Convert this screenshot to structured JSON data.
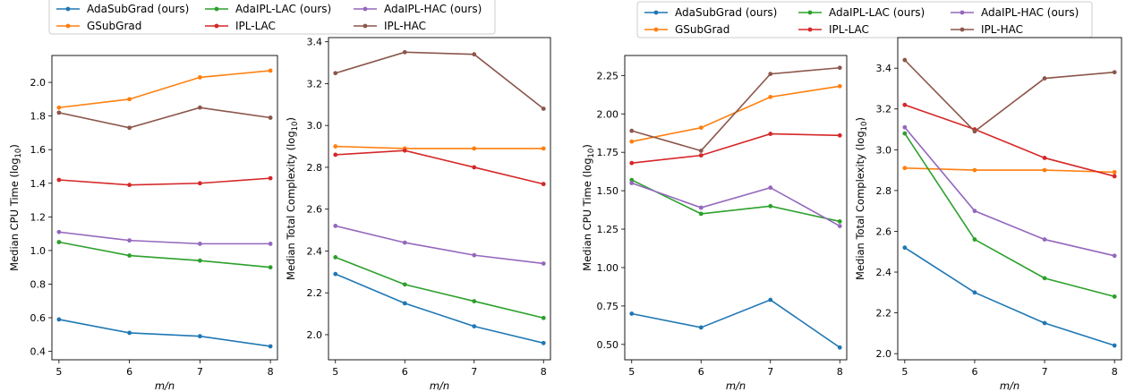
{
  "legend_groups": [
    {
      "entries": [
        {
          "label": "AdaSubGrad (ours)",
          "series": "AdaSubGrad"
        },
        {
          "label": "GSubGrad",
          "series": "GSubGrad"
        },
        {
          "label": "AdaIPL-LAC (ours)",
          "series": "AdaIPL-LAC"
        },
        {
          "label": "IPL-LAC",
          "series": "IPL-LAC"
        },
        {
          "label": "AdaIPL-HAC (ours)",
          "series": "AdaIPL-HAC"
        },
        {
          "label": "IPL-HAC",
          "series": "IPL-HAC"
        }
      ]
    },
    {
      "entries": [
        {
          "label": "AdaSubGrad (ours)",
          "series": "AdaSubGrad"
        },
        {
          "label": "GSubGrad",
          "series": "GSubGrad"
        },
        {
          "label": "AdaIPL-LAC (ours)",
          "series": "AdaIPL-LAC"
        },
        {
          "label": "IPL-LAC",
          "series": "IPL-LAC"
        },
        {
          "label": "AdaIPL-HAC (ours)",
          "series": "AdaIPL-HAC"
        },
        {
          "label": "IPL-HAC",
          "series": "IPL-HAC"
        }
      ]
    }
  ],
  "colors": {
    "AdaSubGrad": "#1f77b4",
    "GSubGrad": "#ff7f0e",
    "AdaIPL-LAC": "#2ca02c",
    "IPL-LAC": "#d62728",
    "AdaIPL-HAC": "#9467bd",
    "IPL-HAC": "#8c564b"
  },
  "chart_data": [
    {
      "type": "line",
      "xlabel": "m/n",
      "ylabel": "Median CPU Time (log10)",
      "x": [
        5,
        6,
        7,
        8
      ],
      "xticks": [
        "5",
        "6",
        "7",
        "8"
      ],
      "yticks": [
        "0.4",
        "0.6",
        "0.8",
        "1.0",
        "1.2",
        "1.4",
        "1.6",
        "1.8",
        "2.0"
      ],
      "ytick_values": [
        0.4,
        0.6,
        0.8,
        1.0,
        1.2,
        1.4,
        1.6,
        1.8,
        2.0
      ],
      "xlim": [
        4.9,
        8.1
      ],
      "ylim": [
        0.35,
        2.16
      ],
      "series": [
        {
          "name": "AdaSubGrad",
          "values": [
            0.59,
            0.51,
            0.49,
            0.43
          ]
        },
        {
          "name": "GSubGrad",
          "values": [
            1.85,
            1.9,
            2.03,
            2.07
          ]
        },
        {
          "name": "AdaIPL-LAC",
          "values": [
            1.05,
            0.97,
            0.94,
            0.9
          ]
        },
        {
          "name": "IPL-LAC",
          "values": [
            1.42,
            1.39,
            1.4,
            1.43
          ]
        },
        {
          "name": "AdaIPL-HAC",
          "values": [
            1.11,
            1.06,
            1.04,
            1.04
          ]
        },
        {
          "name": "IPL-HAC",
          "values": [
            1.82,
            1.73,
            1.85,
            1.79
          ]
        }
      ]
    },
    {
      "type": "line",
      "xlabel": "m/n",
      "ylabel": "Median Total Complexity (log10)",
      "x": [
        5,
        6,
        7,
        8
      ],
      "xticks": [
        "5",
        "6",
        "7",
        "8"
      ],
      "yticks": [
        "2.0",
        "2.2",
        "2.4",
        "2.6",
        "2.8",
        "3.0",
        "3.2",
        "3.4"
      ],
      "ytick_values": [
        2.0,
        2.2,
        2.4,
        2.6,
        2.8,
        3.0,
        3.2,
        3.4
      ],
      "xlim": [
        4.9,
        8.1
      ],
      "ylim": [
        1.88,
        3.42
      ],
      "series": [
        {
          "name": "AdaSubGrad",
          "values": [
            2.29,
            2.15,
            2.04,
            1.96
          ]
        },
        {
          "name": "GSubGrad",
          "values": [
            2.9,
            2.89,
            2.89,
            2.89
          ]
        },
        {
          "name": "AdaIPL-LAC",
          "values": [
            2.37,
            2.24,
            2.16,
            2.08
          ]
        },
        {
          "name": "IPL-LAC",
          "values": [
            2.86,
            2.88,
            2.8,
            2.72
          ]
        },
        {
          "name": "AdaIPL-HAC",
          "values": [
            2.52,
            2.44,
            2.38,
            2.34
          ]
        },
        {
          "name": "IPL-HAC",
          "values": [
            3.25,
            3.35,
            3.34,
            3.08
          ]
        }
      ]
    },
    {
      "type": "line",
      "xlabel": "m/n",
      "ylabel": "Median CPU Time (log10)",
      "x": [
        5,
        6,
        7,
        8
      ],
      "xticks": [
        "5",
        "6",
        "7",
        "8"
      ],
      "yticks": [
        "0.50",
        "0.75",
        "1.00",
        "1.25",
        "1.50",
        "1.75",
        "2.00",
        "2.25"
      ],
      "ytick_values": [
        0.5,
        0.75,
        1.0,
        1.25,
        1.5,
        1.75,
        2.0,
        2.25
      ],
      "xlim": [
        4.9,
        8.1
      ],
      "ylim": [
        0.4,
        2.38
      ],
      "series": [
        {
          "name": "AdaSubGrad",
          "values": [
            0.7,
            0.61,
            0.79,
            0.48
          ]
        },
        {
          "name": "GSubGrad",
          "values": [
            1.82,
            1.91,
            2.11,
            2.18
          ]
        },
        {
          "name": "AdaIPL-LAC",
          "values": [
            1.57,
            1.35,
            1.4,
            1.3
          ]
        },
        {
          "name": "IPL-LAC",
          "values": [
            1.68,
            1.73,
            1.87,
            1.86
          ]
        },
        {
          "name": "AdaIPL-HAC",
          "values": [
            1.55,
            1.39,
            1.52,
            1.27
          ]
        },
        {
          "name": "IPL-HAC",
          "values": [
            1.89,
            1.76,
            2.26,
            2.3
          ]
        }
      ]
    },
    {
      "type": "line",
      "xlabel": "m/n",
      "ylabel": "Median Total Complexity (log10)",
      "x": [
        5,
        6,
        7,
        8
      ],
      "xticks": [
        "5",
        "6",
        "7",
        "8"
      ],
      "yticks": [
        "2.0",
        "2.2",
        "2.4",
        "2.6",
        "2.8",
        "3.0",
        "3.2",
        "3.4"
      ],
      "ytick_values": [
        2.0,
        2.2,
        2.4,
        2.6,
        2.8,
        3.0,
        3.2,
        3.4
      ],
      "xlim": [
        4.9,
        8.1
      ],
      "ylim": [
        1.97,
        3.55
      ],
      "series": [
        {
          "name": "AdaSubGrad",
          "values": [
            2.52,
            2.3,
            2.15,
            2.04
          ]
        },
        {
          "name": "GSubGrad",
          "values": [
            2.91,
            2.9,
            2.9,
            2.89
          ]
        },
        {
          "name": "AdaIPL-LAC",
          "values": [
            3.08,
            2.56,
            2.37,
            2.28
          ]
        },
        {
          "name": "IPL-LAC",
          "values": [
            3.22,
            3.1,
            2.96,
            2.87
          ]
        },
        {
          "name": "AdaIPL-HAC",
          "values": [
            3.11,
            2.7,
            2.56,
            2.48
          ]
        },
        {
          "name": "IPL-HAC",
          "values": [
            3.44,
            3.09,
            3.35,
            3.38
          ]
        }
      ]
    }
  ]
}
